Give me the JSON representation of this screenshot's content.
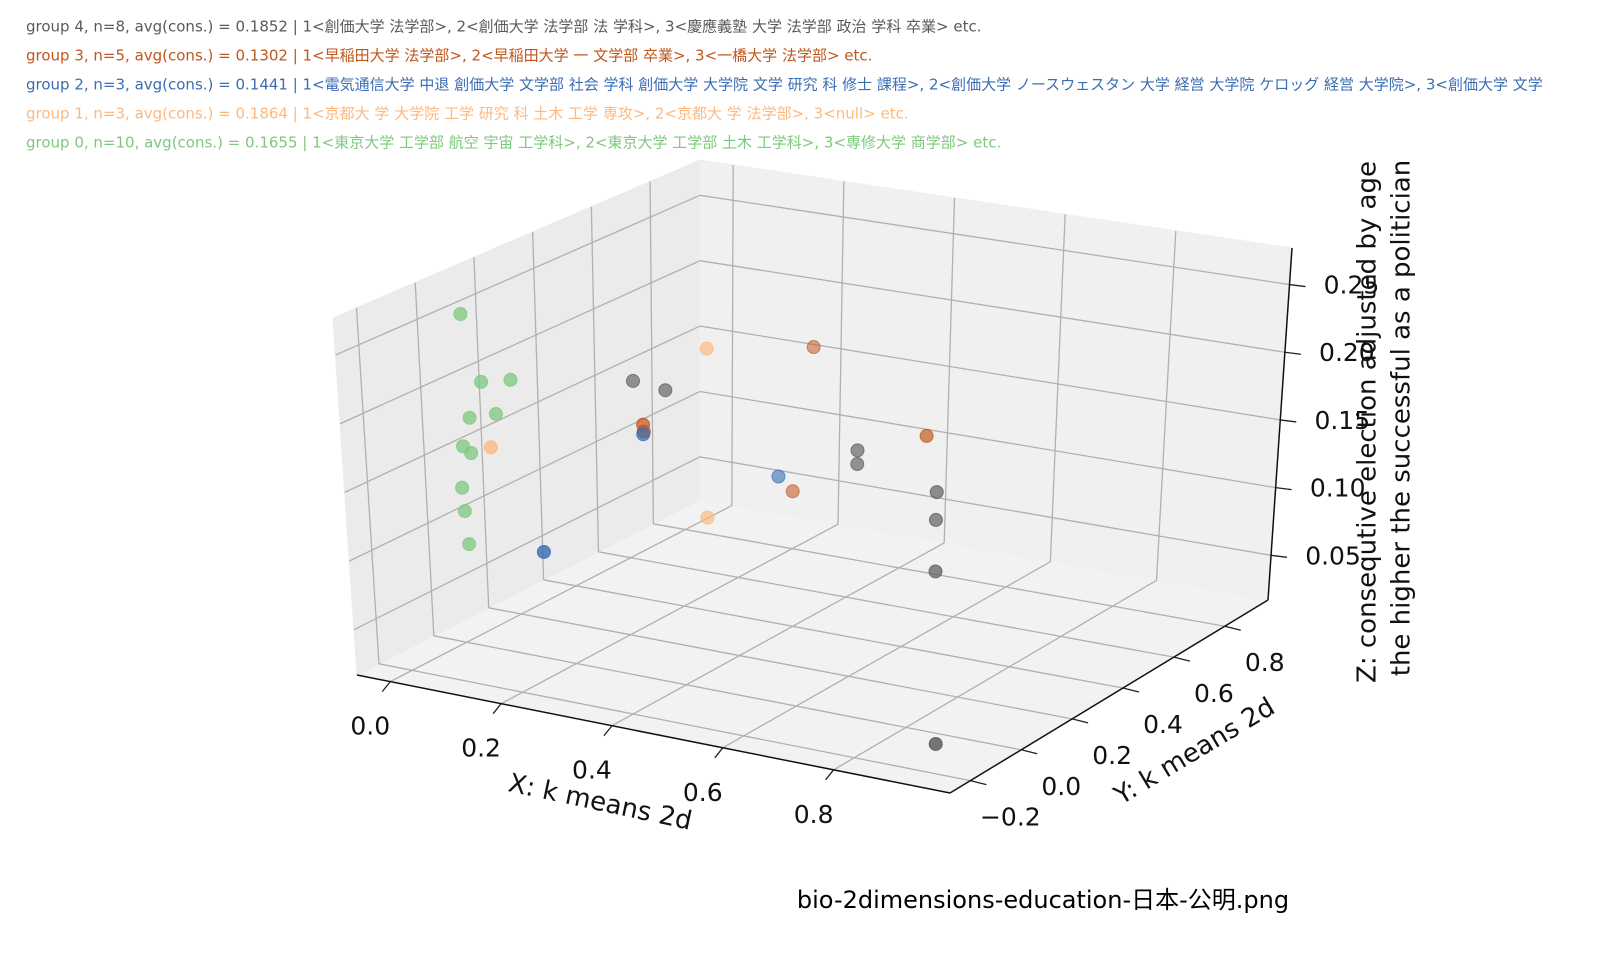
{
  "chart_data": {
    "type": "scatter3d",
    "xlabel": "X: k means 2d",
    "ylabel": "Y: k means 2d",
    "zlabel": [
      "Z: consequtive election adjusted by age",
      "the higher the successful as a politician"
    ],
    "caption": "bio-2dimensions-education-日本-公明.png",
    "xlim": [
      -0.06,
      1.01
    ],
    "ylim": [
      -0.28,
      0.97
    ],
    "zlim": [
      0.017,
      0.277
    ],
    "xticks": [
      {
        "value": 0,
        "label": "0.0"
      },
      0.2,
      0.4,
      0.6,
      0.8
    ],
    "yticks": [
      {
        "value": -0.2,
        "label": "−0.2"
      },
      {
        "value": 0,
        "label": "0.0"
      },
      0.2,
      0.4,
      0.6,
      0.8
    ],
    "zticks": [
      0.05,
      {
        "value": 0.1,
        "label": "0.10"
      },
      0.15,
      {
        "value": 0.2,
        "label": "0.20"
      },
      0.25
    ],
    "grid": true,
    "series": [
      {
        "name": "group 4,  n=8, avg(cons.) = 0.1852 | 1<創価大学 法学部>,  2<創価大学 法学部 法 学科>, 3<慶應義塾 大学 法学部 政治 学科 卒業> etc.",
        "color": "#5a5a5a",
        "x": [
          0.076,
          0.134,
          0.48,
          0.48,
          0.683,
          0.683,
          0.743,
          0.954
        ],
        "y": [
          0.47,
          0.47,
          0.47,
          0.47,
          0.345,
          0.345,
          0.22,
          -0.22
        ],
        "z": [
          0.168,
          0.165,
          0.144,
          0.134,
          0.14,
          0.12,
          0.1,
          0.04
        ]
      },
      {
        "name": "group 3,  n=5, avg(cons.) = 0.1302 | 1<早稲田大学 法学部>,  2<早稲田大学 一 文学部 卒業>, 3<一橋大学 法学部> etc.",
        "color": "#c0561b",
        "x": [
          0.219,
          0.22,
          0.662,
          0.213,
          0.21
        ],
        "y": [
          0.22,
          0.22,
          0.345,
          0.845,
          0.78
        ],
        "z": [
          0.17,
          0.165,
          0.179,
          0.165,
          0.063
        ]
      },
      {
        "name": "group 2,  n=3, avg(cons.) = 0.1441 | 1<電気通信大学 中退 創価大学 文学部 社会 学科 創価大学 大学院 文学 研究 科 修士 課程>,  2<創価大学 ノースウェスタン 大学 経営 大学院 ケロッグ 経営 大学院>, 3<創価大学 文学",
        "color": "#3b6db3",
        "x": [
          0.219,
          0.276,
          0.224
        ],
        "y": [
          0.22,
          0.595,
          -0.155
        ],
        "z": [
          0.163,
          0.098,
          0.115
        ]
      },
      {
        "name": "group 1,  n=3, avg(cons.) = 0.1864 | 1<京都大 学 大学院 工学 研究 科 土木 工学 専攻>,  2<京都大 学 法学部>, 3<null> etc.",
        "color": "#fdb97d",
        "x": [
          0.271,
          0.074,
          0.271
        ],
        "y": [
          0.345,
          -0.03,
          0.345
        ],
        "z": [
          0.217,
          0.168,
          0.093
        ]
      },
      {
        "name": "group 0,  n=10, avg(cons.) = 0.1655 | 1<東京大学 工学部 航空 宇宙 工学科>,  2<東京大学 工学部 土木 工学科>, 3<専修大学 商学部> etc.",
        "color": "#7ec87e",
        "x": [
          -0.036,
          -0.005,
          0.047,
          -0.028,
          0.019,
          -0.042,
          -0.028,
          -0.047,
          -0.044,
          -0.039
        ],
        "y": [
          0.1,
          0.1,
          0.1,
          0.1,
          0.1,
          0.1,
          0.1,
          0.1,
          0.1,
          0.1
        ],
        "z": [
          0.246,
          0.198,
          0.203,
          0.17,
          0.176,
          0.148,
          0.144,
          0.117,
          0.1,
          0.076
        ]
      }
    ]
  }
}
